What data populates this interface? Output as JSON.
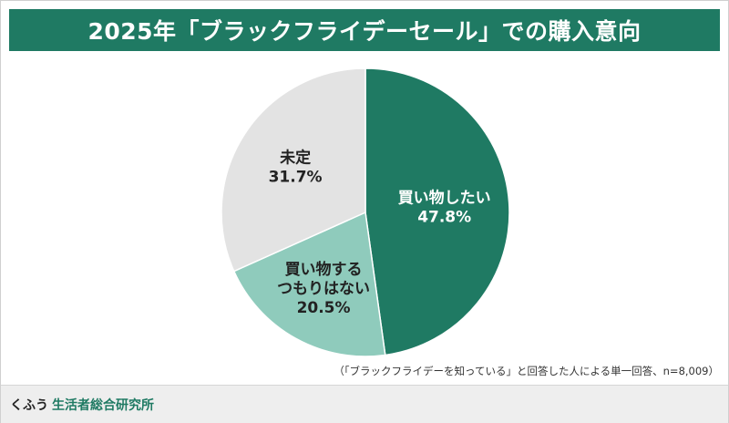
{
  "header": {
    "title": "2025年「ブラックフライデーセール」での購入意向"
  },
  "note": "（「ブラックフライデーを知っている」と回答した人による単一回答、n=8,009）",
  "brand": {
    "name_a": "くふう",
    "name_b": "生活者総合研究所"
  },
  "colors": {
    "title_bg": "#1f7a63",
    "slice_1": "#1f7a63",
    "slice_2": "#8fcbbc",
    "slice_3": "#e3e3e3"
  },
  "chart_data": {
    "type": "pie",
    "title": "",
    "slices": [
      {
        "label_lines": [
          "買い物したい"
        ],
        "value": 47.8,
        "value_label": "47.8%",
        "color": "#1f7a63",
        "text_color": "#ffffff"
      },
      {
        "label_lines": [
          "買い物する",
          "つもりはない"
        ],
        "value": 20.5,
        "value_label": "20.5%",
        "color": "#8fcbbc",
        "text_color": "#222222"
      },
      {
        "label_lines": [
          "未定"
        ],
        "value": 31.7,
        "value_label": "31.7%",
        "color": "#e3e3e3",
        "text_color": "#222222"
      }
    ]
  }
}
